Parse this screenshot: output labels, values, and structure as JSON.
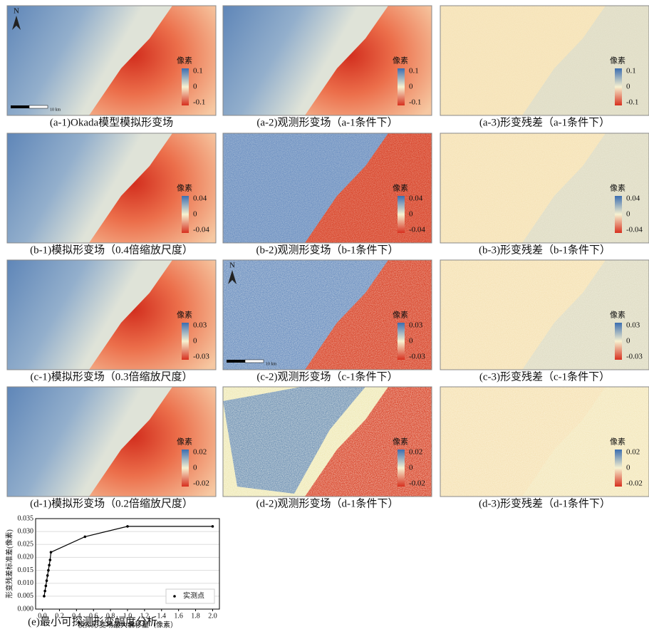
{
  "panels": [
    {
      "caption": "(a-1)Okada模型模拟形变场",
      "colorbar": {
        "title": "像素",
        "ticks": [
          0.1,
          0,
          -0.1
        ]
      },
      "north": "N",
      "scale": "10 km"
    },
    {
      "caption": "(a-2)观测形变场（a-1条件下）",
      "colorbar": {
        "title": "像素",
        "ticks": [
          0.1,
          0,
          -0.1
        ]
      }
    },
    {
      "caption": "(a-3)形变残差（a-1条件下）",
      "colorbar": {
        "title": "像素",
        "ticks": [
          0.1,
          0,
          -0.1
        ]
      }
    },
    {
      "caption": "(b-1)模拟形变场（0.4倍缩放尺度）",
      "colorbar": {
        "title": "像素",
        "ticks": [
          0.04,
          0,
          -0.04
        ]
      }
    },
    {
      "caption": "(b-2)观测形变场（b-1条件下）",
      "colorbar": {
        "title": "像素",
        "ticks": [
          0.04,
          0,
          -0.04
        ]
      }
    },
    {
      "caption": "(b-3)形变残差（b-1条件下）",
      "colorbar": {
        "title": "像素",
        "ticks": [
          0.04,
          0,
          -0.04
        ]
      }
    },
    {
      "caption": "(c-1)模拟形变场（0.3倍缩放尺度）",
      "colorbar": {
        "title": "像素",
        "ticks": [
          0.03,
          0,
          -0.03
        ]
      }
    },
    {
      "caption": "(c-2)观测形变场（c-1条件下）",
      "colorbar": {
        "title": "像素",
        "ticks": [
          0.03,
          0,
          -0.03
        ]
      },
      "north": "N",
      "scale": "10 km"
    },
    {
      "caption": "(c-3)形变残差（c-1条件下）",
      "colorbar": {
        "title": "像素",
        "ticks": [
          0.03,
          0,
          -0.03
        ]
      }
    },
    {
      "caption": "(d-1)模拟形变场（0.2倍缩放尺度）",
      "colorbar": {
        "title": "像素",
        "ticks": [
          0.02,
          0,
          -0.02
        ]
      }
    },
    {
      "caption": "(d-2)观测形变场（d-1条件下）",
      "colorbar": {
        "title": "像素",
        "ticks": [
          0.02,
          0,
          -0.02
        ]
      }
    },
    {
      "caption": "(d-3)形变残差（d-1条件下）",
      "colorbar": {
        "title": "像素",
        "ticks": [
          0.02,
          0,
          -0.02
        ]
      }
    }
  ],
  "chart_data": {
    "type": "line",
    "caption": "(e)最小可探测形变幅度分析",
    "xlabel": "模拟形变场最大偏移量（像素）",
    "ylabel": "形变残差标准差(像素)",
    "x": [
      0.02,
      0.03,
      0.04,
      0.05,
      0.06,
      0.07,
      0.08,
      0.09,
      0.1,
      0.5,
      1.0,
      2.0
    ],
    "series": [
      {
        "name": "实测点",
        "color": "#000000",
        "values": [
          0.005,
          0.007,
          0.009,
          0.011,
          0.013,
          0.015,
          0.017,
          0.019,
          0.022,
          0.028,
          0.032,
          0.032
        ]
      }
    ],
    "xlim": [
      -0.08,
      2.08
    ],
    "ylim": [
      0,
      0.035
    ],
    "xticks": [
      {
        "value": 0,
        "label": "0.0"
      },
      0.2,
      0.4,
      0.6,
      0.8,
      {
        "value": 1,
        "label": "1.0"
      },
      1.2,
      1.4,
      1.6,
      1.8,
      {
        "value": 2,
        "label": "2.0"
      }
    ],
    "yticks": [
      {
        "value": 0,
        "label": "0.000"
      },
      {
        "value": 0.005,
        "label": "0.005"
      },
      {
        "value": 0.01,
        "label": "0.010"
      },
      {
        "value": 0.015,
        "label": "0.015"
      },
      {
        "value": 0.02,
        "label": "0.020"
      },
      {
        "value": 0.025,
        "label": "0.025"
      },
      {
        "value": 0.03,
        "label": "0.030"
      },
      {
        "value": 0.035,
        "label": "0.035"
      }
    ],
    "grid": true,
    "legend": "lower right"
  }
}
